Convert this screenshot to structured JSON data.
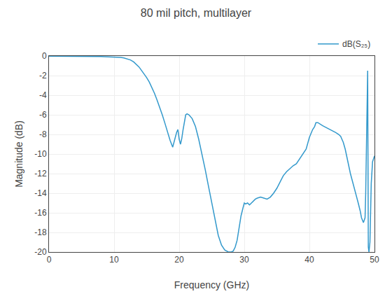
{
  "chart_data": {
    "type": "line",
    "title": "80 mil pitch, multilayer",
    "xlabel": "Frequency (GHz)",
    "ylabel": "Magnitude (dB)",
    "xlim": [
      0,
      50
    ],
    "ylim": [
      -20,
      0
    ],
    "xticks": [
      0,
      10,
      20,
      30,
      40,
      50
    ],
    "yticks": [
      0,
      -2,
      -4,
      -6,
      -8,
      -10,
      -12,
      -14,
      -16,
      -18,
      -20
    ],
    "grid": true,
    "legend": "upper right",
    "x": [
      0.0,
      0.5,
      1.0,
      1.5,
      2.0,
      2.5,
      3.0,
      3.5,
      4.0,
      4.5,
      5.0,
      5.5,
      6.0,
      6.5,
      7.0,
      7.5,
      8.0,
      8.5,
      9.0,
      9.5,
      10.0,
      10.5,
      11.0,
      11.5,
      12.0,
      12.5,
      13.0,
      13.2,
      13.5,
      13.8,
      14.0,
      14.3,
      14.6,
      15.0,
      15.4,
      15.8,
      16.2,
      16.6,
      17.0,
      17.4,
      17.8,
      18.2,
      18.6,
      19.0,
      19.2,
      19.4,
      19.6,
      19.8,
      20.0,
      20.2,
      20.4,
      20.6,
      20.8,
      21.0,
      21.2,
      21.5,
      22.0,
      22.5,
      23.0,
      23.5,
      24.0,
      24.5,
      25.0,
      25.5,
      26.0,
      26.5,
      27.0,
      27.5,
      28.0,
      28.3,
      28.6,
      28.9,
      29.2,
      29.5,
      29.8,
      30.0,
      30.2,
      30.5,
      30.8,
      31.1,
      31.4,
      31.7,
      32.0,
      32.5,
      33.0,
      33.5,
      34.0,
      34.5,
      35.0,
      35.5,
      36.0,
      36.5,
      37.0,
      37.5,
      38.0,
      38.5,
      39.0,
      39.5,
      40.0,
      40.2,
      40.5,
      40.8,
      41.0,
      41.3,
      41.5,
      41.8,
      42.0,
      42.3,
      42.6,
      42.9,
      43.2,
      43.5,
      44.0,
      44.5,
      44.8,
      45.0,
      45.2,
      45.5,
      45.8,
      46.0,
      46.3,
      46.5,
      46.8,
      47.0,
      47.3,
      47.5,
      47.8,
      48.0,
      48.3,
      48.55,
      48.65,
      48.75,
      48.85,
      48.95,
      49.05,
      49.15,
      49.3,
      49.5,
      49.7,
      50.0
    ],
    "series": [
      {
        "name": "dB(S₂₅)",
        "color": "#3399cc",
        "values": [
          -0.01,
          -0.01,
          -0.01,
          -0.01,
          -0.02,
          -0.02,
          -0.02,
          -0.02,
          -0.02,
          -0.03,
          -0.03,
          -0.03,
          -0.04,
          -0.04,
          -0.05,
          -0.05,
          -0.06,
          -0.07,
          -0.08,
          -0.09,
          -0.1,
          -0.12,
          -0.15,
          -0.2,
          -0.28,
          -0.4,
          -0.6,
          -0.72,
          -0.9,
          -1.1,
          -1.28,
          -1.55,
          -1.85,
          -2.2,
          -2.65,
          -3.2,
          -3.8,
          -4.5,
          -5.2,
          -6.0,
          -6.85,
          -7.75,
          -8.6,
          -9.3,
          -8.8,
          -8.2,
          -7.8,
          -7.5,
          -8.5,
          -9.0,
          -8.4,
          -7.5,
          -6.7,
          -6.0,
          -5.9,
          -6.0,
          -6.4,
          -7.2,
          -8.5,
          -10.0,
          -11.6,
          -13.3,
          -15.0,
          -16.8,
          -18.3,
          -19.3,
          -19.8,
          -19.98,
          -20.0,
          -19.9,
          -19.5,
          -18.8,
          -17.5,
          -16.3,
          -15.5,
          -15.0,
          -15.1,
          -15.0,
          -15.2,
          -15.0,
          -14.8,
          -14.6,
          -14.5,
          -14.4,
          -14.5,
          -14.6,
          -14.4,
          -14.0,
          -13.5,
          -12.8,
          -12.2,
          -11.8,
          -11.5,
          -11.2,
          -11.0,
          -10.5,
          -10.0,
          -9.5,
          -8.3,
          -8.0,
          -7.5,
          -7.2,
          -6.8,
          -6.8,
          -6.9,
          -7.0,
          -7.1,
          -7.2,
          -7.3,
          -7.4,
          -7.5,
          -7.6,
          -7.8,
          -8.0,
          -8.2,
          -8.5,
          -8.8,
          -9.5,
          -10.5,
          -11.2,
          -12.0,
          -12.5,
          -13.2,
          -13.8,
          -14.5,
          -15.0,
          -15.8,
          -16.5,
          -17.0,
          -16.5,
          -14.0,
          -10.0,
          -5.0,
          -1.5,
          -19.5,
          -20.0,
          -19.0,
          -13.0,
          -10.8,
          -10.2
        ]
      }
    ]
  }
}
